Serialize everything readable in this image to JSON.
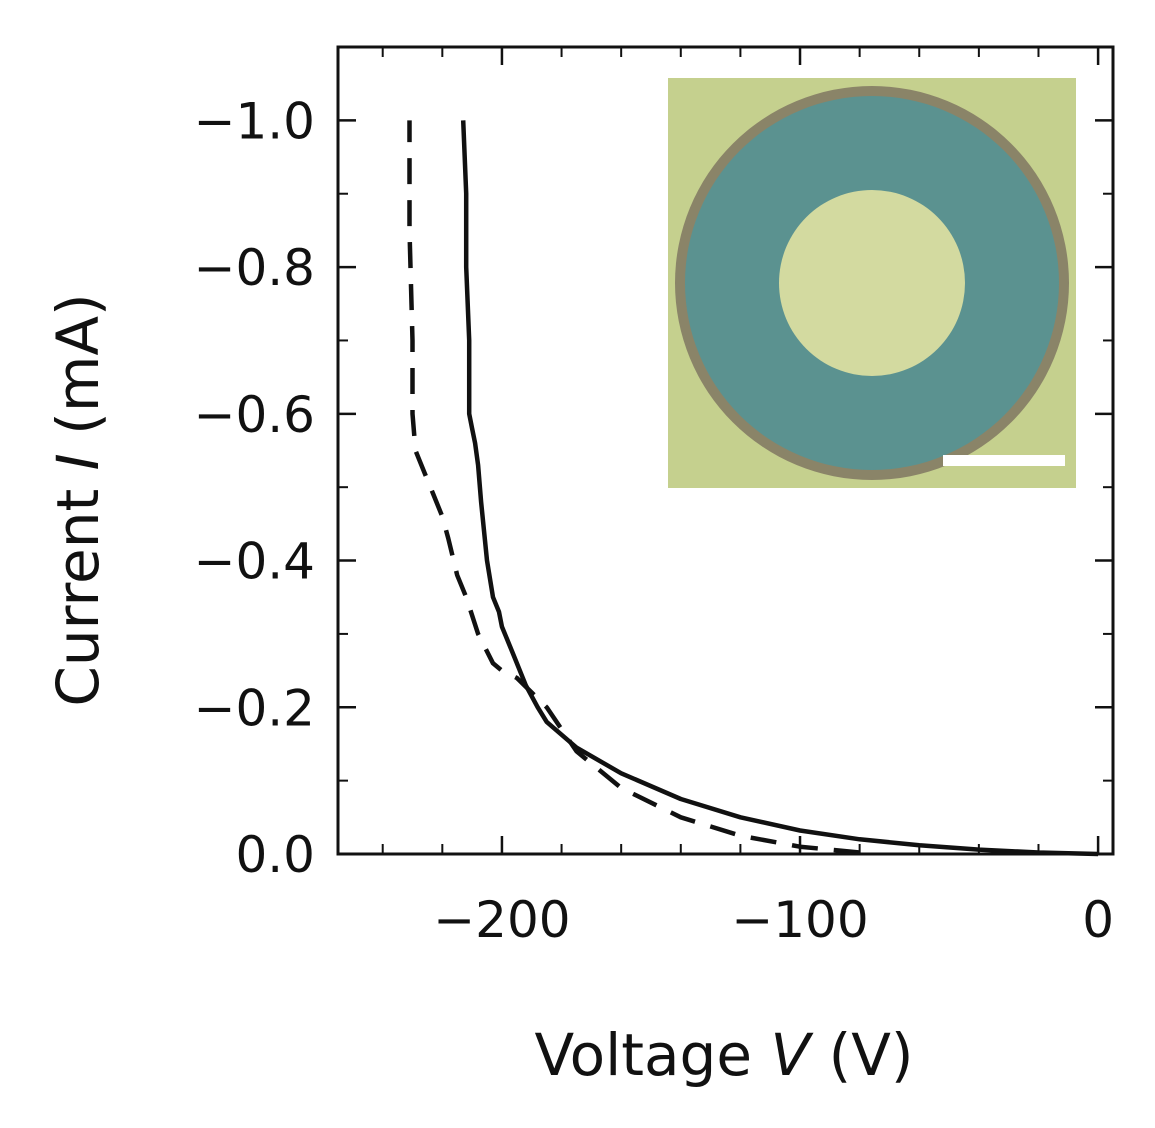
{
  "chart_data": {
    "type": "line",
    "xlabel_prefix": "Voltage ",
    "xlabel_var": "V",
    "xlabel_unit": " (V)",
    "ylabel_prefix": "Current ",
    "ylabel_var": "I",
    "ylabel_unit": " (mA)",
    "xlim": [
      -255,
      5
    ],
    "ylim": [
      0.0,
      -1.1
    ],
    "x_ticks": [
      -200,
      -100,
      0
    ],
    "x_tick_labels": [
      "−200",
      "−100",
      "0"
    ],
    "y_ticks": [
      -1.0,
      -0.8,
      -0.6,
      -0.4,
      -0.2,
      0.0
    ],
    "y_tick_labels": [
      "−1.0",
      "−0.8",
      "−0.6",
      "−0.4",
      "−0.2",
      "0.0"
    ],
    "x_minor_step": 20,
    "y_minor_step": 0.1,
    "series": [
      {
        "name": "solid",
        "style": "solid",
        "x": [
          0,
          -20,
          -40,
          -60,
          -80,
          -100,
          -120,
          -140,
          -160,
          -175,
          -185,
          -188,
          -192,
          -196,
          -200,
          -201,
          -203,
          -205,
          -207,
          -208,
          -209,
          -210,
          -211,
          -211,
          -212,
          -212,
          -213
        ],
        "y": [
          0.0,
          -0.002,
          -0.006,
          -0.012,
          -0.02,
          -0.032,
          -0.05,
          -0.075,
          -0.11,
          -0.145,
          -0.18,
          -0.2,
          -0.23,
          -0.27,
          -0.31,
          -0.33,
          -0.35,
          -0.4,
          -0.48,
          -0.53,
          -0.56,
          -0.58,
          -0.6,
          -0.7,
          -0.8,
          -0.9,
          -1.0
        ]
      },
      {
        "name": "dashed",
        "style": "dashed",
        "x": [
          -80,
          -100,
          -120,
          -140,
          -160,
          -175,
          -185,
          -190,
          -195,
          -200,
          -203,
          -208,
          -212,
          -215,
          -218,
          -220,
          -223,
          -226,
          -229,
          -230,
          -230,
          -231,
          -231
        ],
        "y": [
          -0.002,
          -0.01,
          -0.025,
          -0.05,
          -0.09,
          -0.14,
          -0.2,
          -0.22,
          -0.24,
          -0.25,
          -0.26,
          -0.3,
          -0.35,
          -0.38,
          -0.43,
          -0.46,
          -0.49,
          -0.52,
          -0.55,
          -0.6,
          -0.7,
          -0.85,
          -1.0
        ]
      }
    ],
    "inset": {
      "type": "micrograph",
      "background_color": "#c5d08e",
      "ring_color": "#5b9290",
      "border_color": "#8a8468",
      "center_color": "#d3daa0",
      "scale_bar_color": "#ffffff"
    }
  }
}
